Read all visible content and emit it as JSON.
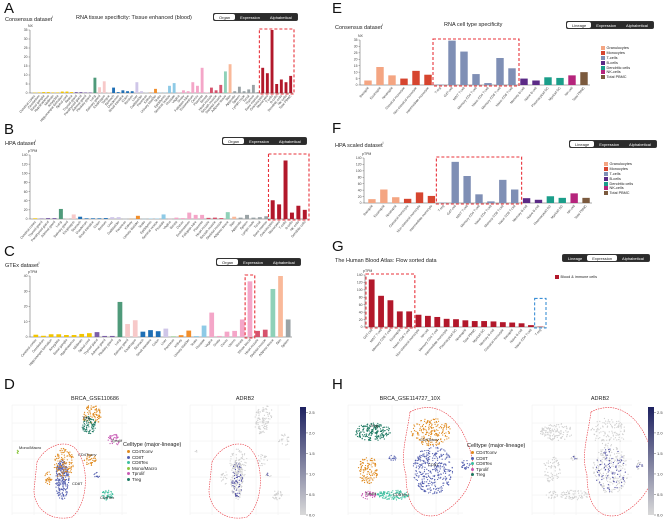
{
  "panels": {
    "A": {
      "letter": "A",
      "dataset": "Consensus dataset",
      "sup": "i",
      "title": "RNA tissue specificity: Tissue enhanced (blood)",
      "buttons": [
        "Organ",
        "Expression",
        "Alphabetical"
      ],
      "active": 0
    },
    "B": {
      "letter": "B",
      "dataset": "HPA dataset",
      "sup": "i",
      "buttons": [
        "Organ",
        "Expression",
        "Alphabetical"
      ],
      "active": 0
    },
    "C": {
      "letter": "C",
      "dataset": "GTEx dataset",
      "sup": "i",
      "buttons": [
        "Organ",
        "Expression",
        "Alphabetical"
      ],
      "active": 0
    },
    "D": {
      "letter": "D",
      "umap_title": "BRCA_GSE110686",
      "gene_title": "ADRB2",
      "legend_title": "Celltype (major-lineage)",
      "legend": [
        "CD4Tconv",
        "CD8T",
        "CD8Tex",
        "Mono/Macro",
        "Tprolif",
        "Treg"
      ],
      "cluster_labels": [
        "Mono/Macro",
        "Treg",
        "Tprolif",
        "CD4Tconv",
        "CD8T",
        "CD8Tex"
      ],
      "colorbar_ticks": [
        "0.0",
        "0.5",
        "1.0",
        "1.5",
        "2.0",
        "2.5"
      ]
    },
    "E": {
      "letter": "E",
      "dataset": "Consensus dataset",
      "sup": "i",
      "title": "RNA cell type specificity",
      "buttons": [
        "Lineage",
        "Expression",
        "Alphabetical"
      ],
      "active": 0
    },
    "F": {
      "letter": "F",
      "dataset": "HPA scaled dataset",
      "sup": "i",
      "buttons": [
        "Lineage",
        "Expression",
        "Alphabetical"
      ],
      "active": 0
    },
    "G": {
      "letter": "G",
      "dataset": "The Human Blood Atlas: Flow sorted data",
      "buttons": [
        "Lineage",
        "Expression",
        "Alphabetical"
      ],
      "active": 1,
      "legend": [
        "Blood & immune cells"
      ]
    },
    "H": {
      "letter": "H",
      "umap_title": "BRCA_GSE114727_10X",
      "gene_title": "ADRB2",
      "legend_title": "Celltype (major-lineage)",
      "legend": [
        "CD4Tconv",
        "CD8T",
        "CD8Tex",
        "Tprolif",
        "Treg"
      ],
      "cluster_labels": [
        "Treg",
        "CD4Tconv",
        "CD8T",
        "Tprolif",
        "CD8Tex"
      ],
      "colorbar_ticks": [
        "0.0",
        "0.5",
        "1.0",
        "1.5",
        "2.0",
        "2.5"
      ]
    }
  },
  "lineage_legend": [
    {
      "label": "Granulocytes",
      "color": "#f4a582"
    },
    {
      "label": "Monocytes",
      "color": "#d6452f"
    },
    {
      "label": "T-cells",
      "color": "#7f8fb5"
    },
    {
      "label": "B-cells",
      "color": "#5b2a86"
    },
    {
      "label": "Dendritic cells",
      "color": "#1b9e8a"
    },
    {
      "label": "NK-cells",
      "color": "#b5247c"
    },
    {
      "label": "Total PBMC",
      "color": "#7b5a3e"
    }
  ],
  "celltype_colors": {
    "CD4Tconv": "#e08a1e",
    "CD8T": "#5560b0",
    "CD8Tex": "#3dbf9f",
    "Mono/Macro": "#8cc63f",
    "Tprolif": "#c85bb5",
    "Treg": "#1f7a63"
  },
  "chart_data": [
    {
      "id": "A",
      "type": "bar",
      "ylabel": "NX",
      "ylim": [
        0,
        35
      ],
      "yticks": [
        0,
        5,
        10,
        15,
        20,
        25,
        30,
        35
      ],
      "categories": [
        "Cerebral cortex",
        "Cerebellum",
        "Basal ganglia",
        "Hypothalamus",
        "Midbrain",
        "Amygdala",
        "Hippocampal formation",
        "Spinal cord",
        "Retina",
        "Thyroid gland",
        "Parathyroid gland",
        "Adrenal gland",
        "Pituitary gland",
        "Lung",
        "Salivary gland",
        "Esophagus",
        "Tongue",
        "Stomach",
        "Duodenum",
        "Small intestine",
        "Colon",
        "Rectum",
        "Liver",
        "Gallbladder",
        "Pancreas",
        "Kidney",
        "Urinary bladder",
        "Testis",
        "Epididymis",
        "Seminal vesicle",
        "Prostate",
        "Vagina",
        "Ovary",
        "Fallopian tube",
        "Endometrium",
        "Cervix",
        "Placenta",
        "Breast",
        "Heart muscle",
        "Smooth muscle",
        "Skeletal muscle",
        "Adipose tissue",
        "Skin",
        "Appendix",
        "Spleen",
        "Lymph node",
        "Tonsil",
        "Thymus",
        "Bone marrow",
        "Granulocytes",
        "Monocytes",
        "T-cells",
        "B-cells",
        "Dendritic cells",
        "NK-cells",
        "Total PBMC"
      ],
      "values": [
        0.2,
        0.3,
        0.5,
        0.5,
        0.3,
        0.3,
        0.8,
        0.8,
        0.5,
        0.5,
        0.5,
        0.3,
        0.3,
        8.5,
        3.2,
        6.5,
        0.2,
        3,
        0.5,
        1.5,
        1,
        1,
        6,
        1,
        0.2,
        0.2,
        2.3,
        0.2,
        0.2,
        4,
        5.5,
        0.2,
        1.5,
        1,
        6,
        4,
        14,
        0.3,
        3,
        1.5,
        4.5,
        12,
        16,
        1,
        3.5,
        1,
        2,
        4.5,
        0.5,
        14,
        11,
        35,
        5,
        7.5,
        6,
        9.5
      ],
      "color_runs": [
        [
          9,
          "#f2c500"
        ],
        [
          4,
          "#7b5ea7"
        ],
        [
          1,
          "#4f9a7a"
        ],
        [
          3,
          "#f7c9c9"
        ],
        [
          5,
          "#1f6fb5"
        ],
        [
          2,
          "#cfc6e8"
        ],
        [
          1,
          "#b9c7d9"
        ],
        [
          2,
          "#f28e2b"
        ],
        [
          4,
          "#8ecae6"
        ],
        [
          7,
          "#f4a6c8"
        ],
        [
          3,
          "#d6536d"
        ],
        [
          1,
          "#8fd1b8"
        ],
        [
          1,
          "#f9b99a"
        ],
        [
          6,
          "#9aa3a6"
        ],
        [
          7,
          "#b2182b"
        ]
      ],
      "highlight": [
        [
          49,
          55,
          "red"
        ]
      ]
    },
    {
      "id": "B",
      "type": "bar",
      "ylabel": "pTPM",
      "ylim": [
        0,
        140
      ],
      "yticks": [
        0,
        20,
        40,
        60,
        80,
        100,
        120,
        140
      ],
      "categories": [
        "Cerebral cortex",
        "Thyroid gland",
        "Parathyroid gland",
        "Adrenal gland",
        "Lung",
        "Salivary gland",
        "Esophagus",
        "Stomach",
        "Duodenum",
        "Small intestine",
        "Colon",
        "Rectum",
        "Liver",
        "Gallbladder",
        "Pancreas",
        "Kidney",
        "Urinary bladder",
        "Testis",
        "Epididymis",
        "Seminal vesicle",
        "Prostate",
        "Vagina",
        "Breast",
        "Cervix",
        "Endometrium",
        "Fallopian tube",
        "Placenta",
        "Heart muscle",
        "Smooth muscle",
        "Skeletal muscle",
        "Adipose tissue",
        "Skin",
        "Appendix",
        "Spleen",
        "Lymph node",
        "Tonsil",
        "Bone marrow",
        "Granulocytes",
        "Monocytes",
        "T-cells",
        "B-cells",
        "NK-cells",
        "Dendritic cells"
      ],
      "values": [
        1.5,
        1,
        2,
        2,
        22,
        0.5,
        10,
        5,
        1.5,
        1.5,
        1.5,
        2,
        4,
        4,
        0.3,
        0.3,
        7,
        0.3,
        1,
        1,
        10,
        0.3,
        3,
        2,
        14,
        9,
        9,
        2.5,
        3,
        2,
        15,
        5,
        3,
        9,
        3,
        4,
        6,
        41,
        32,
        128,
        14,
        29,
        20
      ],
      "color_runs": [
        [
          1,
          "#f2c500"
        ],
        [
          3,
          "#7b5ea7"
        ],
        [
          1,
          "#4f9a7a"
        ],
        [
          2,
          "#f7c9c9"
        ],
        [
          5,
          "#1f6fb5"
        ],
        [
          2,
          "#cfc6e8"
        ],
        [
          1,
          "#b9c7d9"
        ],
        [
          2,
          "#f28e2b"
        ],
        [
          4,
          "#8ecae6"
        ],
        [
          6,
          "#f4a6c8"
        ],
        [
          3,
          "#d6536d"
        ],
        [
          1,
          "#8fd1b8"
        ],
        [
          1,
          "#f9b99a"
        ],
        [
          5,
          "#9aa3a6"
        ],
        [
          6,
          "#b2182b"
        ]
      ],
      "highlight": [
        [
          37,
          42,
          "red"
        ]
      ]
    },
    {
      "id": "C",
      "type": "bar",
      "ylabel": "pTPM",
      "ylim": [
        0,
        40
      ],
      "yticks": [
        0,
        10,
        20,
        30,
        40
      ],
      "categories": [
        "Cerebral cortex",
        "Cerebellum",
        "Hippocampal formation",
        "Amygdala",
        "Basal ganglia",
        "Hypothalamus",
        "Midbrain",
        "Spinal cord",
        "Thyroid gland",
        "Adrenal gland",
        "Pituitary gland",
        "Lung",
        "Salivary gland",
        "Esophagus",
        "Stomach",
        "Small intestine",
        "Colon",
        "Liver",
        "Pancreas",
        "Kidney",
        "Urinary bladder",
        "Testis",
        "Prostate",
        "Vagina",
        "Ovary",
        "Cervix",
        "Uterus",
        "Breast",
        "Whole blood",
        "Heart muscle",
        "Skeletal muscle",
        "Adipose tissue",
        "Skin",
        "Spleen"
      ],
      "values": [
        1.5,
        0.8,
        1.8,
        1.8,
        1.3,
        1.3,
        2,
        2.5,
        3.2,
        0.7,
        0.7,
        23,
        8.5,
        11,
        3.5,
        4.5,
        3.8,
        5.5,
        0.5,
        1.2,
        4.2,
        0.6,
        7.5,
        16,
        0.7,
        3.5,
        4,
        11.5,
        36.5,
        4,
        4.8,
        31.5,
        40,
        11.5
      ],
      "color_runs": [
        [
          8,
          "#f2c500"
        ],
        [
          3,
          "#7b5ea7"
        ],
        [
          1,
          "#4f9a7a"
        ],
        [
          2,
          "#f7c9c9"
        ],
        [
          3,
          "#1f6fb5"
        ],
        [
          1,
          "#cfc6e8"
        ],
        [
          1,
          "#9fd39a"
        ],
        [
          2,
          "#f28e2b"
        ],
        [
          2,
          "#8ecae6"
        ],
        [
          6,
          "#f4a6c8"
        ],
        [
          2,
          "#d6536d"
        ],
        [
          1,
          "#8fd1b8"
        ],
        [
          1,
          "#f9b99a"
        ],
        [
          1,
          "#9aa3a6"
        ]
      ],
      "highlight": [
        [
          28,
          28,
          "red"
        ]
      ]
    },
    {
      "id": "E",
      "type": "bar",
      "ylabel": "NX",
      "ylim": [
        0,
        35
      ],
      "yticks": [
        0,
        5,
        10,
        15,
        20,
        25,
        30,
        35
      ],
      "categories": [
        "Basophil",
        "Eosinophil",
        "Neutrophil",
        "Classical monocyte",
        "Non-classical monocyte",
        "Intermediate monocyte",
        "T-reg",
        "GdT-cell",
        "MAIT T-cell",
        "Memory CD4 T-cell",
        "Naive CD4 T-cell",
        "Memory CD8 T-cell",
        "Naive CD8 T-cell",
        "Memory B-cell",
        "Naive B-cell",
        "Plasmacytoid DC",
        "Myeloid DC",
        "NK-cell",
        "Total PBMC"
      ],
      "values": [
        3.5,
        14,
        7.5,
        5,
        11,
        8,
        0.3,
        34.5,
        26,
        8.5,
        1.5,
        21,
        13,
        5,
        3.5,
        6,
        5.5,
        7.5,
        10
      ],
      "color_runs": [
        [
          3,
          "#f4a582"
        ],
        [
          3,
          "#d6452f"
        ],
        [
          7,
          "#7f8fb5"
        ],
        [
          2,
          "#5b2a86"
        ],
        [
          2,
          "#1b9e8a"
        ],
        [
          1,
          "#b5247c"
        ],
        [
          1,
          "#7b5a3e"
        ]
      ],
      "highlight": [
        [
          6,
          12,
          "red"
        ]
      ]
    },
    {
      "id": "F",
      "type": "bar",
      "ylabel": "pTPM",
      "ylim": [
        0,
        140
      ],
      "yticks": [
        0,
        20,
        40,
        60,
        80,
        100,
        120,
        140
      ],
      "categories": [
        "Basophil",
        "Eosinophil",
        "Neutrophil",
        "Classical monocyte",
        "Non-classical monocyte",
        "Intermediate monocyte",
        "T-reg",
        "GdT-cell",
        "MAIT T-cell",
        "Memory CD4 T-cell",
        "Naive CD4 T-cell",
        "Memory CD8 T-cell",
        "Naive CD8 T-cell",
        "Memory B-cell",
        "Naive B-cell",
        "Plasmacytoid DC",
        "Myeloid DC",
        "NK-cell",
        "Total PBMC"
      ],
      "values": [
        12,
        42,
        18,
        13,
        33,
        22,
        1,
        128,
        84,
        27,
        5,
        72,
        42,
        15,
        10,
        21,
        16,
        30,
        16
      ],
      "color_runs": [
        [
          3,
          "#f4a582"
        ],
        [
          3,
          "#d6452f"
        ],
        [
          7,
          "#7f8fb5"
        ],
        [
          2,
          "#5b2a86"
        ],
        [
          2,
          "#1b9e8a"
        ],
        [
          1,
          "#b5247c"
        ],
        [
          1,
          "#7b5a3e"
        ]
      ],
      "highlight": [
        [
          6,
          12,
          "red"
        ]
      ]
    },
    {
      "id": "G",
      "type": "bar",
      "ylabel": "pTPM",
      "ylim": [
        0,
        140
      ],
      "yticks": [
        0,
        20,
        40,
        60,
        80,
        100,
        120,
        140
      ],
      "categories": [
        "GdT-cell",
        "MAIT T-cell",
        "Memory CD8 T-cell",
        "Eosinophil",
        "Naive CD8 T-cell",
        "Non-classical monocyte",
        "NK-cell",
        "Memory CD4 T-cell",
        "Intermediate monocyte",
        "Plasmacytoid DC",
        "Neutrophil",
        "Total PBMC",
        "Myeloid DC",
        "Memory B-cell",
        "Classical monocyte",
        "Basophil",
        "Naive B-cell",
        "Naive CD4 T-cell",
        "T-reg"
      ],
      "values": [
        128,
        84,
        72,
        42,
        42,
        33,
        30,
        27,
        22,
        21,
        18,
        16,
        16,
        15,
        13,
        12,
        10,
        5,
        1
      ],
      "color_runs": [
        [
          19,
          "#b2182b"
        ]
      ],
      "highlight": [
        [
          0,
          4,
          "red"
        ],
        [
          18,
          18,
          "blue"
        ]
      ]
    }
  ]
}
